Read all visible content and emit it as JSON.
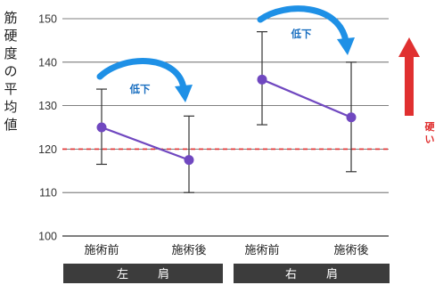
{
  "chart_data": {
    "type": "line",
    "ylabel": "筋硬度の平均値",
    "ylim": [
      100,
      150
    ],
    "yticks": [
      100,
      110,
      120,
      130,
      140,
      150
    ],
    "grid": true,
    "reference_line": {
      "value": 120,
      "color": "#e03030",
      "style": "dashed"
    },
    "categories": [
      "施術前",
      "施術後",
      "施術前",
      "施術後"
    ],
    "groups": [
      {
        "label": "左　肩",
        "categories": [
          "施術前",
          "施術後"
        ]
      },
      {
        "label": "右　肩",
        "categories": [
          "施術前",
          "施術後"
        ]
      }
    ],
    "series": [
      {
        "group": "左　肩",
        "color": "#7048c0",
        "points": [
          {
            "x": "施術前",
            "y": 125,
            "err_low": 116.5,
            "err_high": 133.8
          },
          {
            "x": "施術後",
            "y": 117.5,
            "err_low": 110,
            "err_high": 127.6
          }
        ]
      },
      {
        "group": "右　肩",
        "color": "#7048c0",
        "points": [
          {
            "x": "施術前",
            "y": 136,
            "err_low": 125.6,
            "err_high": 147
          },
          {
            "x": "施術後",
            "y": 127.3,
            "err_low": 114.8,
            "err_high": 140
          }
        ]
      }
    ],
    "annotations": [
      {
        "text": "低下",
        "group": "左　肩",
        "color": "#1e90e6"
      },
      {
        "text": "低下",
        "group": "右　肩",
        "color": "#1e90e6"
      }
    ],
    "side_indicator": {
      "text": "硬い",
      "color": "#e03030"
    }
  }
}
